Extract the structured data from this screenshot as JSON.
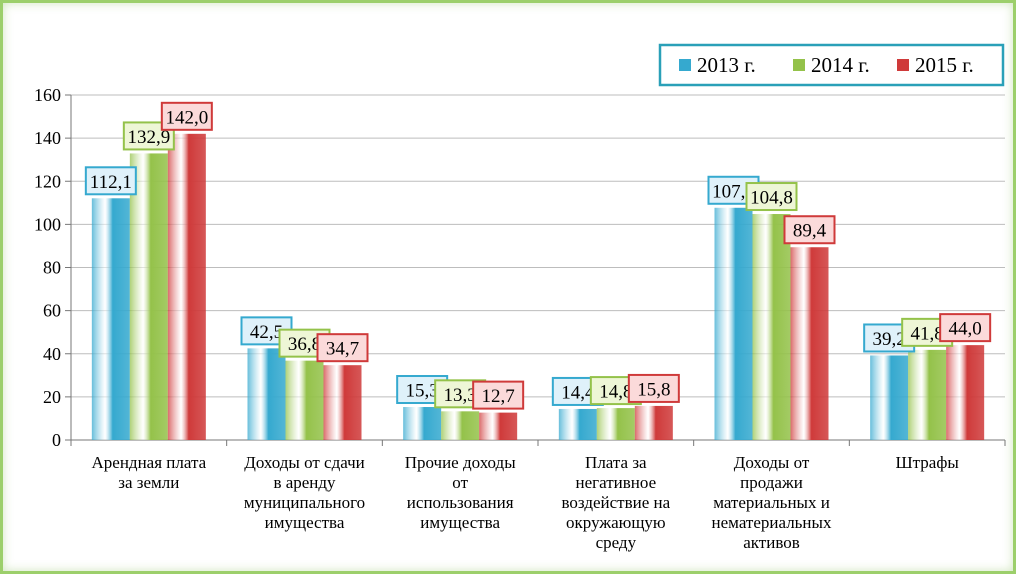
{
  "chart_data": {
    "type": "bar",
    "categories": [
      "Арендная плата за земли",
      "Доходы от сдачи в аренду муниципального имущества",
      "Прочие доходы от использования имущества",
      "Плата за негативное воздействие на окружающую среду",
      "Доходы от продажи материальных и нематериальных активов",
      "Штрафы"
    ],
    "category_lines": [
      [
        "Арендная плата",
        "за земли"
      ],
      [
        "Доходы от сдачи",
        "в аренду",
        "муниципального",
        "имущества"
      ],
      [
        "Прочие доходы",
        "от",
        "использования",
        "имущества"
      ],
      [
        "Плата за",
        "негативное",
        "воздействие на",
        "окружающую",
        "среду"
      ],
      [
        "Доходы от",
        "продажи",
        "материальных и",
        "нематериальных",
        "активов"
      ],
      [
        "Штрафы"
      ]
    ],
    "series": [
      {
        "name": "2013 г.",
        "values": [
          112.1,
          42.5,
          15.3,
          14.4,
          107.7,
          39.2
        ],
        "labels": [
          "112,1",
          "42,5",
          "15,3",
          "14,4",
          "107,7",
          "39,2"
        ]
      },
      {
        "name": "2014 г.",
        "values": [
          132.9,
          36.8,
          13.3,
          14.8,
          104.8,
          41.8
        ],
        "labels": [
          "132,9",
          "36,8",
          "13,3",
          "14,8",
          "104,8",
          "41,8"
        ]
      },
      {
        "name": "2015 г.",
        "values": [
          142.0,
          34.7,
          12.7,
          15.8,
          89.4,
          44.0
        ],
        "labels": [
          "142,0",
          "34,7",
          "12,7",
          "15,8",
          "89,4",
          "44,0"
        ]
      }
    ],
    "yticks": [
      "0",
      "20",
      "40",
      "60",
      "80",
      "100",
      "120",
      "140",
      "160"
    ],
    "ylim": [
      0,
      160
    ],
    "grid": true,
    "legend_position": "top-right"
  },
  "colors": {
    "series": [
      "#35a9cf",
      "#94c24a",
      "#cf3a3a"
    ],
    "label_bg": [
      "#dff1fa",
      "#eef6d6",
      "#fbdada"
    ],
    "label_border": [
      "#35a9cf",
      "#94c24a",
      "#cf3a3a"
    ]
  }
}
